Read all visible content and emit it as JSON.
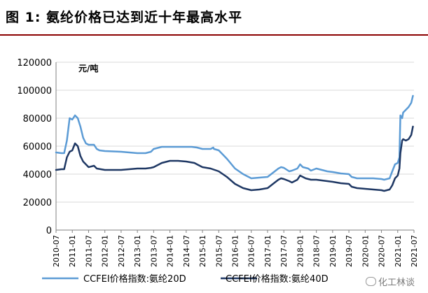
{
  "title": "图 1:  氨纶价格已达到近十年最高水平",
  "watermark": "化工林谈",
  "chart_data": {
    "type": "line",
    "ylabel": "元/吨",
    "ylim": [
      0,
      120000
    ],
    "yticks": [
      0,
      20000,
      40000,
      60000,
      80000,
      100000,
      120000
    ],
    "ytick_labels": [
      "0",
      "20000",
      "40000",
      "60000",
      "80000",
      "100000",
      "120000"
    ],
    "xlim": [
      "2010-07",
      "2021-07"
    ],
    "xticks": [
      "2010-07",
      "2011-01",
      "2011-07",
      "2012-01",
      "2012-07",
      "2013-01",
      "2013-07",
      "2014-01",
      "2014-07",
      "2015-01",
      "2015-07",
      "2016-01",
      "2016-07",
      "2017-01",
      "2017-07",
      "2018-01",
      "2018-07",
      "2019-01",
      "2019-07",
      "2020-01",
      "2020-07",
      "2021-01",
      "2021-07"
    ],
    "grid": true,
    "legend_position": "bottom",
    "series": [
      {
        "name": "CCFEI价格指数:氨纶20D",
        "color": "#5b9bd5",
        "points": [
          [
            "2010-07-01",
            55500
          ],
          [
            "2010-09-01",
            55000
          ],
          [
            "2010-10-01",
            55000
          ],
          [
            "2010-11-01",
            64000
          ],
          [
            "2010-12-01",
            80000
          ],
          [
            "2011-01-01",
            79000
          ],
          [
            "2011-02-01",
            82000
          ],
          [
            "2011-03-01",
            80000
          ],
          [
            "2011-04-01",
            74000
          ],
          [
            "2011-05-01",
            66000
          ],
          [
            "2011-06-01",
            62000
          ],
          [
            "2011-07-01",
            61000
          ],
          [
            "2011-09-01",
            61000
          ],
          [
            "2011-10-01",
            58000
          ],
          [
            "2011-11-01",
            57000
          ],
          [
            "2012-01-01",
            56500
          ],
          [
            "2012-07-01",
            56000
          ],
          [
            "2012-10-01",
            55500
          ],
          [
            "2013-01-01",
            55000
          ],
          [
            "2013-04-01",
            55000
          ],
          [
            "2013-06-01",
            56000
          ],
          [
            "2013-07-01",
            58000
          ],
          [
            "2013-10-01",
            59500
          ],
          [
            "2014-07-01",
            59500
          ],
          [
            "2014-09-01",
            59500
          ],
          [
            "2014-11-01",
            59000
          ],
          [
            "2015-01-01",
            58000
          ],
          [
            "2015-04-01",
            58000
          ],
          [
            "2015-05-01",
            59000
          ],
          [
            "2015-05-08",
            58000
          ],
          [
            "2015-07-01",
            57000
          ],
          [
            "2015-10-01",
            51000
          ],
          [
            "2016-01-01",
            44000
          ],
          [
            "2016-04-01",
            40000
          ],
          [
            "2016-07-01",
            37000
          ],
          [
            "2016-10-01",
            37500
          ],
          [
            "2017-01-01",
            38000
          ],
          [
            "2017-03-01",
            41000
          ],
          [
            "2017-05-01",
            44000
          ],
          [
            "2017-06-01",
            45000
          ],
          [
            "2017-07-01",
            44500
          ],
          [
            "2017-09-01",
            42000
          ],
          [
            "2017-10-01",
            42500
          ],
          [
            "2017-12-01",
            44000
          ],
          [
            "2018-01-01",
            47000
          ],
          [
            "2018-02-01",
            45000
          ],
          [
            "2018-04-01",
            44000
          ],
          [
            "2018-05-01",
            42500
          ],
          [
            "2018-07-01",
            44000
          ],
          [
            "2018-09-01",
            43000
          ],
          [
            "2018-11-01",
            42000
          ],
          [
            "2019-01-01",
            41500
          ],
          [
            "2019-04-01",
            40500
          ],
          [
            "2019-07-01",
            40000
          ],
          [
            "2019-08-01",
            38000
          ],
          [
            "2019-10-01",
            37000
          ],
          [
            "2020-01-01",
            37000
          ],
          [
            "2020-04-01",
            37000
          ],
          [
            "2020-07-01",
            36500
          ],
          [
            "2020-08-01",
            36000
          ],
          [
            "2020-10-01",
            37000
          ],
          [
            "2020-11-01",
            42000
          ],
          [
            "2020-12-01",
            47000
          ],
          [
            "2021-01-01",
            48000
          ],
          [
            "2021-01-20",
            52000
          ],
          [
            "2021-02-01",
            82000
          ],
          [
            "2021-02-20",
            80000
          ],
          [
            "2021-03-01",
            84000
          ],
          [
            "2021-04-01",
            86000
          ],
          [
            "2021-05-01",
            88000
          ],
          [
            "2021-06-01",
            91000
          ],
          [
            "2021-06-20",
            96000
          ]
        ]
      },
      {
        "name": "CCFEI价格指数:氨纶40D",
        "color": "#1f3864",
        "points": [
          [
            "2010-07-01",
            43000
          ],
          [
            "2010-09-01",
            43500
          ],
          [
            "2010-10-01",
            43500
          ],
          [
            "2010-11-01",
            52000
          ],
          [
            "2010-12-01",
            56000
          ],
          [
            "2011-01-01",
            57000
          ],
          [
            "2011-02-01",
            62000
          ],
          [
            "2011-03-01",
            60000
          ],
          [
            "2011-04-01",
            53000
          ],
          [
            "2011-05-01",
            49000
          ],
          [
            "2011-06-01",
            47000
          ],
          [
            "2011-07-01",
            45000
          ],
          [
            "2011-09-01",
            46000
          ],
          [
            "2011-10-01",
            44000
          ],
          [
            "2012-01-01",
            43000
          ],
          [
            "2012-07-01",
            43000
          ],
          [
            "2012-10-01",
            43500
          ],
          [
            "2013-01-01",
            44000
          ],
          [
            "2013-04-01",
            44000
          ],
          [
            "2013-06-01",
            44500
          ],
          [
            "2013-07-01",
            45000
          ],
          [
            "2013-10-01",
            48000
          ],
          [
            "2014-01-01",
            49500
          ],
          [
            "2014-04-01",
            49500
          ],
          [
            "2014-07-01",
            49000
          ],
          [
            "2014-10-01",
            48000
          ],
          [
            "2015-01-01",
            45000
          ],
          [
            "2015-04-01",
            44000
          ],
          [
            "2015-07-01",
            42000
          ],
          [
            "2015-10-01",
            38000
          ],
          [
            "2016-01-01",
            33000
          ],
          [
            "2016-04-01",
            30000
          ],
          [
            "2016-07-01",
            28500
          ],
          [
            "2016-10-01",
            29000
          ],
          [
            "2017-01-01",
            30000
          ],
          [
            "2017-03-01",
            33000
          ],
          [
            "2017-05-01",
            36000
          ],
          [
            "2017-06-01",
            37000
          ],
          [
            "2017-07-01",
            36500
          ],
          [
            "2017-09-01",
            35000
          ],
          [
            "2017-10-01",
            34000
          ],
          [
            "2017-12-01",
            36000
          ],
          [
            "2018-01-01",
            39000
          ],
          [
            "2018-03-01",
            37000
          ],
          [
            "2018-05-01",
            36000
          ],
          [
            "2018-07-01",
            36000
          ],
          [
            "2018-09-01",
            35500
          ],
          [
            "2019-01-01",
            34500
          ],
          [
            "2019-04-01",
            33500
          ],
          [
            "2019-07-01",
            33000
          ],
          [
            "2019-08-01",
            31000
          ],
          [
            "2019-10-01",
            30000
          ],
          [
            "2020-01-01",
            29500
          ],
          [
            "2020-04-01",
            29000
          ],
          [
            "2020-07-01",
            28500
          ],
          [
            "2020-08-01",
            28000
          ],
          [
            "2020-10-01",
            29000
          ],
          [
            "2020-11-01",
            32000
          ],
          [
            "2020-12-01",
            37000
          ],
          [
            "2021-01-01",
            39000
          ],
          [
            "2021-01-20",
            44000
          ],
          [
            "2021-02-01",
            55000
          ],
          [
            "2021-02-20",
            64000
          ],
          [
            "2021-03-01",
            65000
          ],
          [
            "2021-04-01",
            64000
          ],
          [
            "2021-05-01",
            65000
          ],
          [
            "2021-06-01",
            68000
          ],
          [
            "2021-06-20",
            74000
          ]
        ]
      }
    ]
  }
}
